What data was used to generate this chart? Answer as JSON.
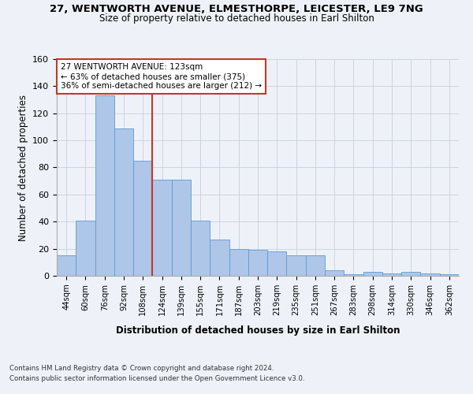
{
  "title_line1": "27, WENTWORTH AVENUE, ELMESTHORPE, LEICESTER, LE9 7NG",
  "title_line2": "Size of property relative to detached houses in Earl Shilton",
  "xlabel": "Distribution of detached houses by size in Earl Shilton",
  "ylabel": "Number of detached properties",
  "categories": [
    "44sqm",
    "60sqm",
    "76sqm",
    "92sqm",
    "108sqm",
    "124sqm",
    "139sqm",
    "155sqm",
    "171sqm",
    "187sqm",
    "203sqm",
    "219sqm",
    "235sqm",
    "251sqm",
    "267sqm",
    "283sqm",
    "298sqm",
    "314sqm",
    "330sqm",
    "346sqm",
    "362sqm"
  ],
  "values": [
    15,
    41,
    133,
    109,
    85,
    71,
    71,
    41,
    27,
    20,
    19,
    18,
    15,
    15,
    4,
    1,
    3,
    2,
    3,
    2,
    1
  ],
  "bar_color": "#aec6e8",
  "bar_edge_color": "#5b9bd5",
  "vline_color": "#c0392b",
  "annotation_box_edge": "#c0392b",
  "annotation_line1": "27 WENTWORTH AVENUE: 123sqm",
  "annotation_line2": "← 63% of detached houses are smaller (375)",
  "annotation_line3": "36% of semi-detached houses are larger (212) →",
  "ylim": [
    0,
    160
  ],
  "yticks": [
    0,
    20,
    40,
    60,
    80,
    100,
    120,
    140,
    160
  ],
  "footnote1": "Contains HM Land Registry data © Crown copyright and database right 2024.",
  "footnote2": "Contains public sector information licensed under the Open Government Licence v3.0.",
  "bg_color": "#eef2f8",
  "plot_bg_color": "#eef2f8"
}
